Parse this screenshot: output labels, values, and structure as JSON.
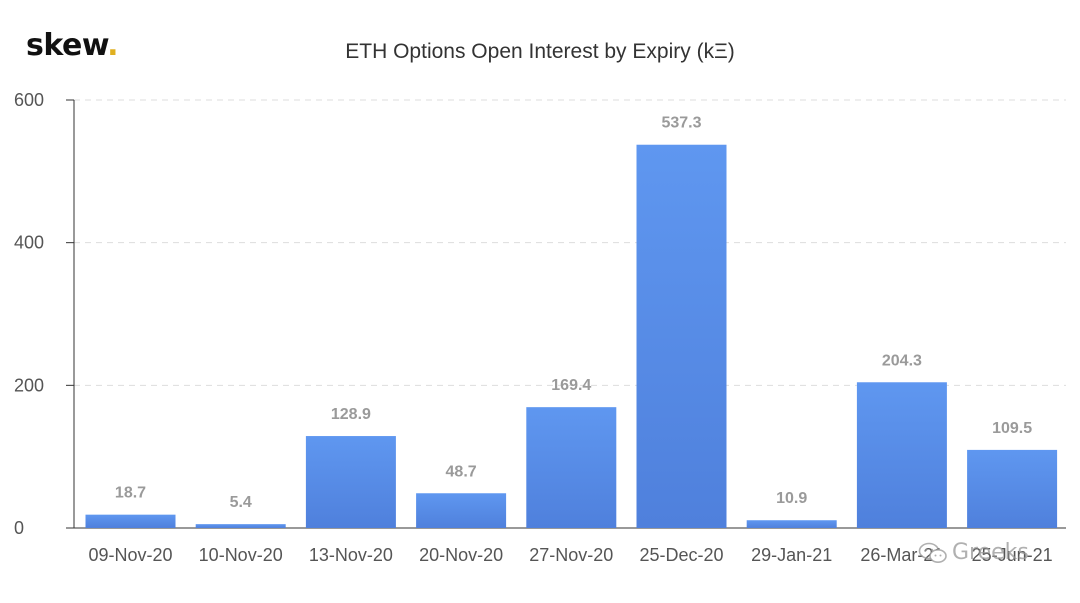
{
  "brand": {
    "logo_text": "skew",
    "logo_dot": ".",
    "accent_color": "#e0b020"
  },
  "watermark": {
    "text": "Greeks"
  },
  "chart_data": {
    "type": "bar",
    "title": "ETH Options Open Interest by Expiry (kΞ)",
    "xlabel": "",
    "ylabel": "",
    "ylim": [
      0,
      600
    ],
    "yticks": [
      0,
      200,
      400,
      600
    ],
    "grid": true,
    "categories": [
      "09-Nov-20",
      "10-Nov-20",
      "13-Nov-20",
      "20-Nov-20",
      "27-Nov-20",
      "25-Dec-20",
      "29-Jan-21",
      "26-Mar-21",
      "25-Jun-21"
    ],
    "values": [
      18.7,
      5.4,
      128.9,
      48.7,
      169.4,
      537.3,
      10.9,
      204.3,
      109.5
    ],
    "data_labels": [
      "18.7",
      "5.4",
      "128.9",
      "48.7",
      "169.4",
      "537.3",
      "10.9",
      "204.3",
      "109.5"
    ],
    "bar_color_top": "#5f97f0",
    "bar_color_bottom": "#4f80dc"
  }
}
